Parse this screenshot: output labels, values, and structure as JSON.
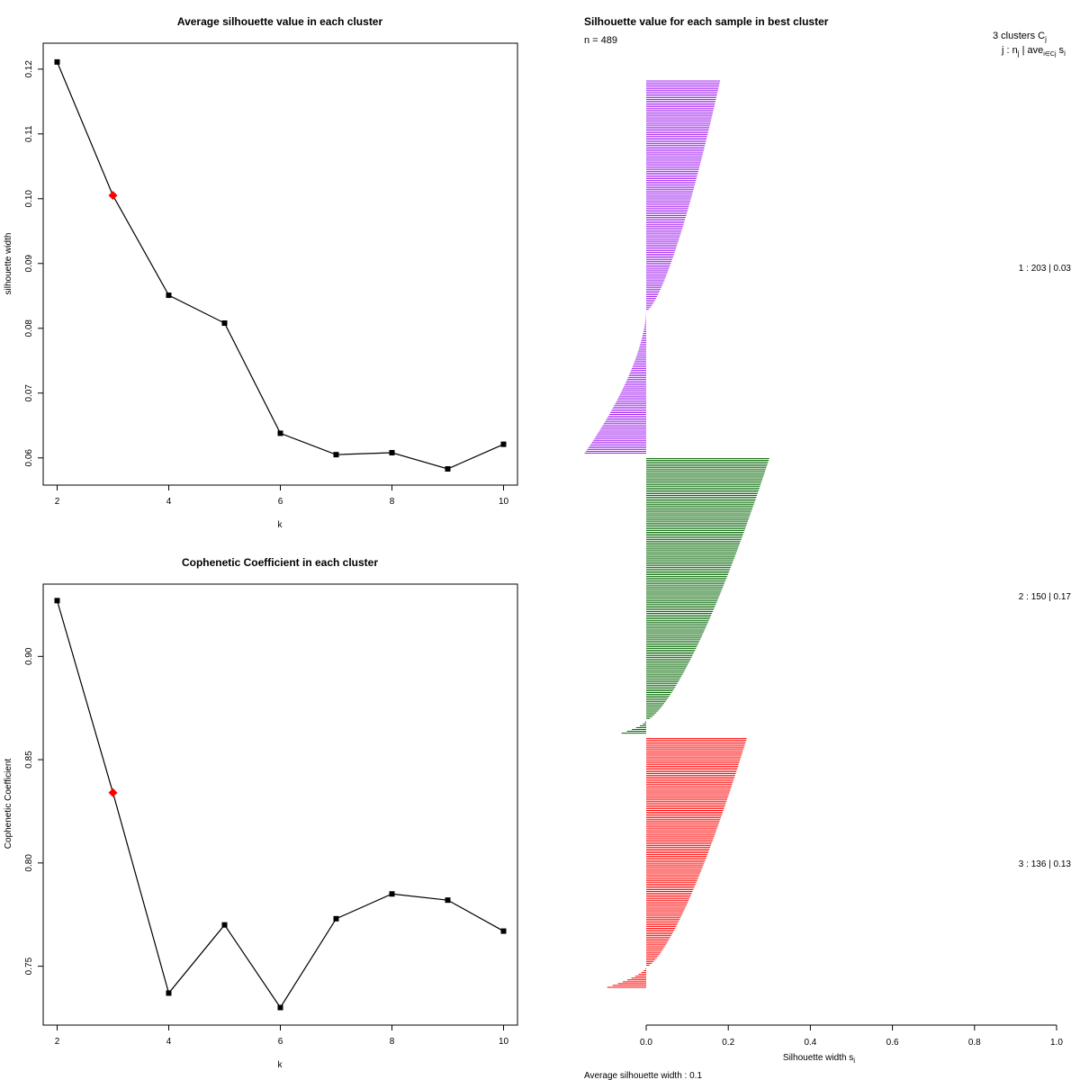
{
  "chart_data": [
    {
      "type": "line",
      "title": "Average silhouette value in each cluster",
      "xlabel": "k",
      "ylabel": "silhouette width",
      "x": [
        2,
        3,
        4,
        5,
        6,
        7,
        8,
        9,
        10
      ],
      "values": [
        0.1211,
        0.1005,
        0.0851,
        0.0808,
        0.0638,
        0.0605,
        0.0608,
        0.0583,
        0.0621
      ],
      "highlight": {
        "k": 3,
        "color": "#ff0000"
      },
      "xticks": [
        "2",
        "4",
        "6",
        "8",
        "10"
      ],
      "yticks": [
        "0.06",
        "0.07",
        "0.08",
        "0.09",
        "0.10",
        "0.11",
        "0.12"
      ],
      "xlim": [
        1.75,
        10.25
      ],
      "ylim": [
        0.0558,
        0.124
      ]
    },
    {
      "type": "line",
      "title": "Cophenetic Coefficient in each cluster",
      "xlabel": "k",
      "ylabel": "Cophenetic Coefficient",
      "x": [
        2,
        3,
        4,
        5,
        6,
        7,
        8,
        9,
        10
      ],
      "values": [
        0.927,
        0.834,
        0.737,
        0.77,
        0.73,
        0.773,
        0.785,
        0.782,
        0.767
      ],
      "highlight": {
        "k": 3,
        "color": "#ff0000"
      },
      "xticks": [
        "2",
        "4",
        "6",
        "8",
        "10"
      ],
      "yticks": [
        "0.75",
        "0.80",
        "0.85",
        "0.90"
      ],
      "xlim": [
        1.75,
        10.25
      ],
      "ylim": [
        0.7215,
        0.935
      ]
    },
    {
      "type": "bar",
      "orientation": "horizontal",
      "title": "Silhouette value for each sample in best cluster",
      "n_label": "n = 489",
      "header_line1": "3  clusters  C",
      "header_line1_sub": "j",
      "header_line2": "j :  n",
      "header_line2_sub": "j",
      "header_line2_rest": " | ave",
      "header_line2_sub2": "i∈Cj",
      "header_line2_end": " s",
      "header_line2_sub3": "i",
      "xlabel": "Silhouette width s",
      "xlabel_sub": "i",
      "avg_text": "Average silhouette width :  0.1",
      "xticks": [
        "0.0",
        "0.2",
        "0.4",
        "0.6",
        "0.8",
        "1.0"
      ],
      "xlim": [
        0.0,
        1.0
      ],
      "clusters": [
        {
          "id": 1,
          "n": 203,
          "avg": 0.03,
          "label": "1 :  203  |  0.03",
          "color": "#a020f0",
          "max": 0.18,
          "min": -0.15,
          "zero_frac": 0.62
        },
        {
          "id": 2,
          "n": 150,
          "avg": 0.17,
          "label": "2 :  150  |  0.17",
          "color": "#006400",
          "max": 0.3,
          "min": -0.06,
          "zero_frac": 0.95
        },
        {
          "id": 3,
          "n": 136,
          "avg": 0.13,
          "label": "3 :  136  |  0.13",
          "color": "#ff0000",
          "max": 0.245,
          "min": -0.095,
          "zero_frac": 0.92
        }
      ]
    }
  ]
}
